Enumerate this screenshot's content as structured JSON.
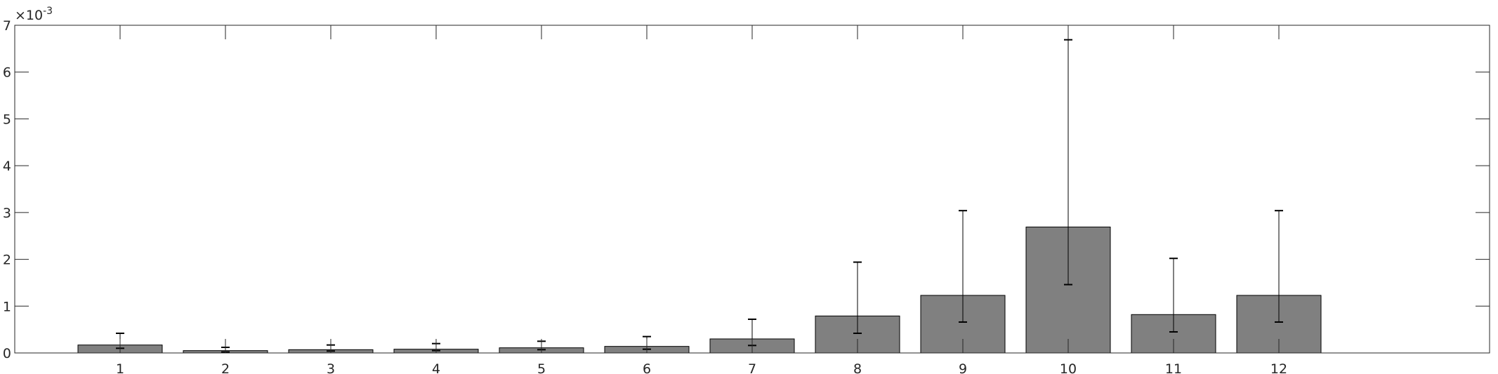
{
  "chart_data": {
    "type": "bar",
    "title": "",
    "xlabel": "",
    "ylabel": "",
    "exponent_label": {
      "base": "×10",
      "power": "-3"
    },
    "categories": [
      "1",
      "2",
      "3",
      "4",
      "5",
      "6",
      "7",
      "8",
      "9",
      "10",
      "11",
      "12"
    ],
    "xlim": [
      0,
      14
    ],
    "ylim": [
      0,
      7
    ],
    "ytick_values": [
      0,
      1,
      2,
      3,
      4,
      5,
      6,
      7
    ],
    "ytick_labels": [
      "0",
      "1",
      "2",
      "3",
      "4",
      "5",
      "6",
      "7"
    ],
    "values": [
      0.17,
      0.05,
      0.07,
      0.08,
      0.11,
      0.14,
      0.3,
      0.79,
      1.23,
      2.69,
      0.82,
      1.23
    ],
    "error_low": [
      0.1,
      0.02,
      0.04,
      0.05,
      0.07,
      0.08,
      0.16,
      0.42,
      0.66,
      1.46,
      0.45,
      0.66
    ],
    "error_high": [
      0.42,
      0.12,
      0.17,
      0.2,
      0.25,
      0.35,
      0.72,
      1.94,
      3.04,
      6.69,
      2.02,
      3.04
    ],
    "bar_color": "#808080",
    "edge_color": "#000000",
    "grid": false,
    "legend": "none"
  }
}
